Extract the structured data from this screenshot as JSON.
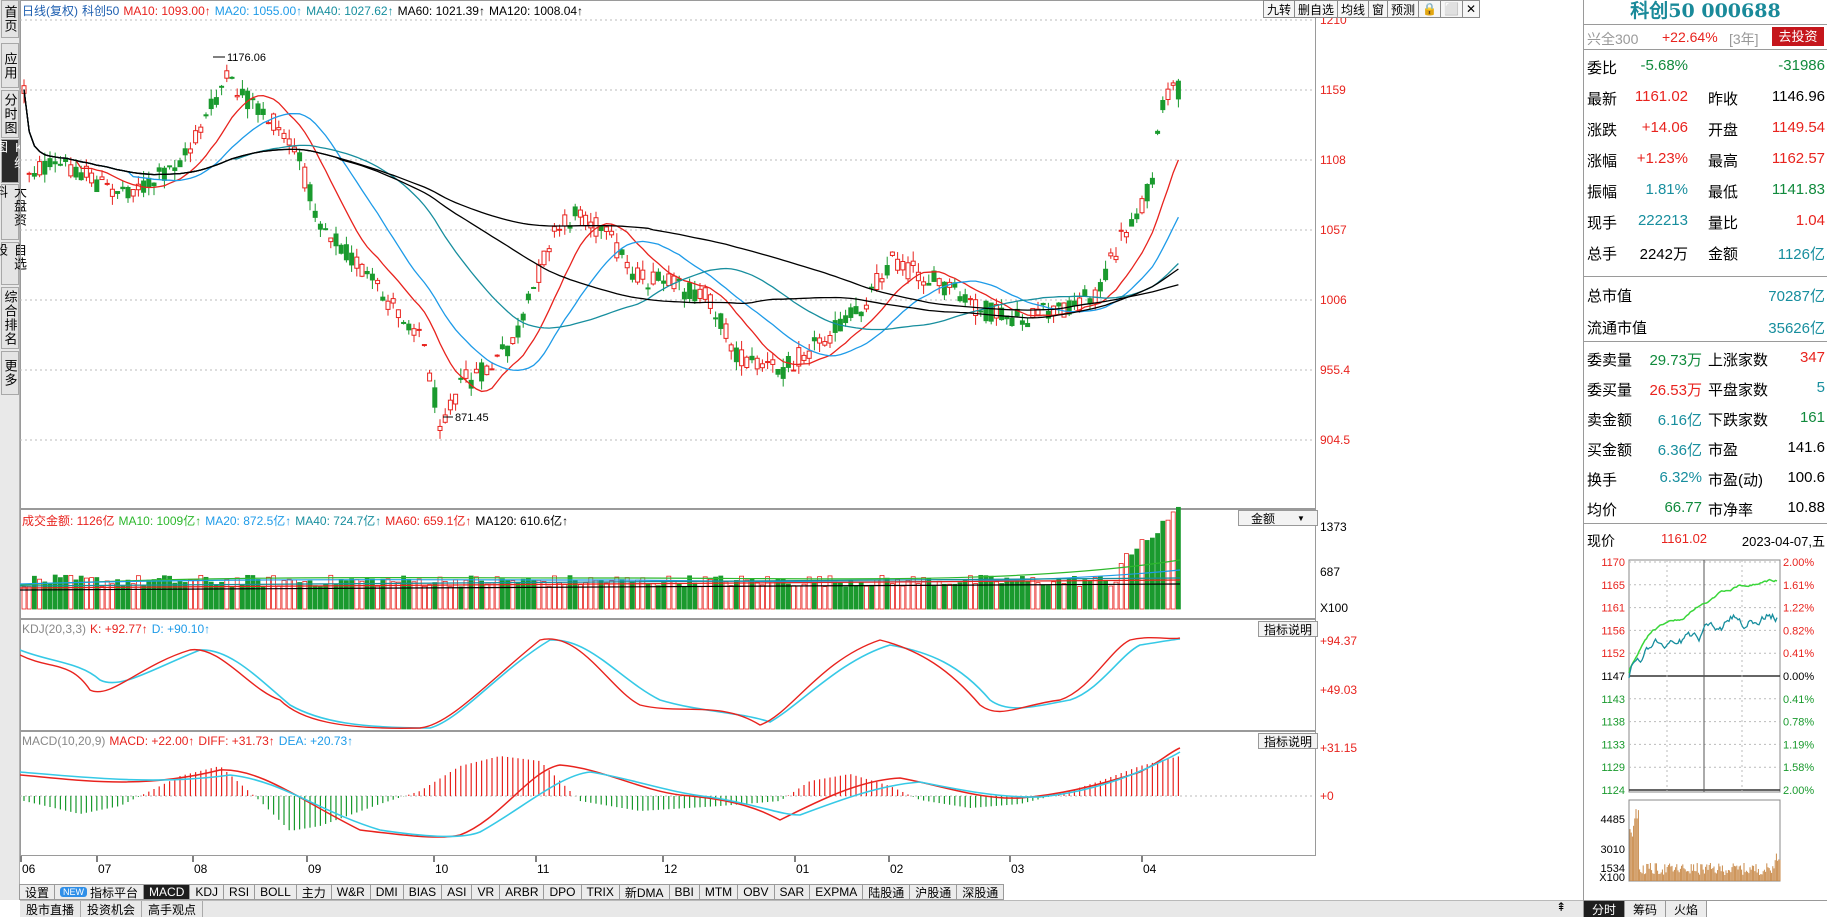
{
  "left_nav": [
    "首页",
    "应用",
    "分时图",
    "K线图",
    "大盘资料",
    "自选股",
    "综合排名",
    "更多"
  ],
  "main_legend": {
    "prefix": "日线(复权)",
    "name": "科创50",
    "items": [
      {
        "text": "MA10: 1093.00↑",
        "color": "#e8231e"
      },
      {
        "text": "MA20: 1055.00↑",
        "color": "#1e9be8"
      },
      {
        "text": "MA40: 1027.62↑",
        "color": "#178e9e"
      },
      {
        "text": "MA60: 1021.39↑",
        "color": "#000000"
      },
      {
        "text": "MA120: 1008.04↑",
        "color": "#000000"
      }
    ]
  },
  "top_tools": [
    "九转",
    "删自选",
    "均线",
    "窗",
    "预测",
    "🔒",
    "⬜",
    "✕"
  ],
  "price_axis": [
    "1210",
    "1159",
    "1108",
    "1057",
    "1006",
    "955.4",
    "904.5"
  ],
  "annotations": {
    "high": "1176.06",
    "low": "871.45"
  },
  "volume_legend": {
    "items": [
      {
        "text": "成交金额: 1126亿",
        "color": "#e8231e"
      },
      {
        "text": "MA10: 1009亿↑",
        "color": "#2db82d"
      },
      {
        "text": "MA20: 872.5亿↑",
        "color": "#1e9be8"
      },
      {
        "text": "MA40: 724.7亿↑",
        "color": "#178e9e"
      },
      {
        "text": "MA60: 659.1亿↑",
        "color": "#e8231e"
      },
      {
        "text": "MA120: 610.6亿↑",
        "color": "#000000"
      }
    ],
    "selector": "金额",
    "axis": [
      "1373",
      "687",
      "X100"
    ]
  },
  "kdj_legend": {
    "items": [
      {
        "text": "KDJ(20,3,3)",
        "color": "#888888"
      },
      {
        "text": "K: +92.77↑",
        "color": "#e8231e"
      },
      {
        "text": "D: +90.10↑",
        "color": "#1e9be8"
      }
    ],
    "button": "指标说明",
    "axis": [
      "+94.37",
      "+49.03"
    ]
  },
  "macd_legend": {
    "items": [
      {
        "text": "MACD(10,20,9)",
        "color": "#888888"
      },
      {
        "text": "MACD: +22.00↑",
        "color": "#e8231e"
      },
      {
        "text": "DIFF: +31.73↑",
        "color": "#e8231e"
      },
      {
        "text": "DEA: +20.73↑",
        "color": "#1e9be8"
      }
    ],
    "button": "指标说明",
    "axis": [
      "+31.15",
      "+0"
    ]
  },
  "month_labels": [
    "06",
    "07",
    "08",
    "09",
    "10",
    "11",
    "12",
    "01",
    "02",
    "03",
    "04"
  ],
  "tabs": [
    "设置",
    "指标平台",
    "MACD",
    "KDJ",
    "RSI",
    "BOLL",
    "主力",
    "W&R",
    "DMI",
    "BIAS",
    "ASI",
    "VR",
    "ARBR",
    "DPO",
    "TRIX",
    "新DMA",
    "BBI",
    "MTM",
    "OBV",
    "SAR",
    "EXPMA",
    "陆股通",
    "沪股通",
    "深股通"
  ],
  "new_tag": "NEW",
  "status_items": [
    "股市直播",
    "投资机会",
    "高手观点"
  ],
  "right": {
    "title": "科创50 000688",
    "compare": {
      "name": "兴全300",
      "value": "+22.64%",
      "period": "[3年]",
      "button": "去投资"
    },
    "rows1": [
      {
        "k1": "委比",
        "v1": "-5.68%",
        "c1": "grn",
        "k2": "",
        "v2": "-31986",
        "c2": "grn"
      },
      {
        "k1": "最新",
        "v1": "1161.02",
        "c1": "red",
        "k2": "昨收",
        "v2": "1146.96",
        "c2": "blk"
      },
      {
        "k1": "涨跌",
        "v1": "+14.06",
        "c1": "red",
        "k2": "开盘",
        "v2": "1149.54",
        "c2": "red"
      },
      {
        "k1": "涨幅",
        "v1": "+1.23%",
        "c1": "red",
        "k2": "最高",
        "v2": "1162.57",
        "c2": "red"
      },
      {
        "k1": "振幅",
        "v1": "1.81%",
        "c1": "cyan",
        "k2": "最低",
        "v2": "1141.83",
        "c2": "grn"
      },
      {
        "k1": "现手",
        "v1": "222213",
        "c1": "cyan",
        "k2": "量比",
        "v2": "1.04",
        "c2": "red"
      },
      {
        "k1": "总手",
        "v1": "2242万",
        "c1": "blk",
        "k2": "金额",
        "v2": "1126亿",
        "c2": "cyan"
      }
    ],
    "rows2": [
      {
        "k": "总市值",
        "v": "70287亿",
        "c": "cyan"
      },
      {
        "k": "流通市值",
        "v": "35626亿",
        "c": "cyan"
      }
    ],
    "rows3": [
      {
        "k1": "委卖量",
        "v1": "29.73万",
        "c1": "grn",
        "k2": "上涨家数",
        "v2": "347",
        "c2": "red"
      },
      {
        "k1": "委买量",
        "v1": "26.53万",
        "c1": "red",
        "k2": "平盘家数",
        "v2": "5",
        "c2": "cyan"
      },
      {
        "k1": "卖金额",
        "v1": "6.16亿",
        "c1": "cyan",
        "k2": "下跌家数",
        "v2": "161",
        "c2": "grn"
      },
      {
        "k1": "买金额",
        "v1": "6.36亿",
        "c1": "cyan",
        "k2": "市盈",
        "v2": "141.6",
        "c2": "blk"
      },
      {
        "k1": "换手",
        "v1": "6.32%",
        "c1": "cyan",
        "k2": "市盈(动)",
        "v2": "100.6",
        "c2": "blk"
      },
      {
        "k1": "均价",
        "v1": "66.77",
        "c1": "grn",
        "k2": "市净率",
        "v2": "10.88",
        "c2": "blk"
      }
    ],
    "mini": {
      "label": "现价",
      "price": "1161.02",
      "date": "2023-04-07,五",
      "left_axis": [
        "1170",
        "1165",
        "1161",
        "1156",
        "1152",
        "1147",
        "1143",
        "1138",
        "1133",
        "1129",
        "1124"
      ],
      "right_axis": [
        "2.00%",
        "1.61%",
        "1.22%",
        "0.82%",
        "0.41%",
        "0.00%",
        "0.41%",
        "0.78%",
        "1.19%",
        "1.58%",
        "2.00%"
      ],
      "vol_axis": [
        "4485",
        "3010",
        "1534",
        "X100"
      ]
    },
    "bottom_tabs": [
      "分时",
      "筹码",
      "火焰"
    ]
  }
}
